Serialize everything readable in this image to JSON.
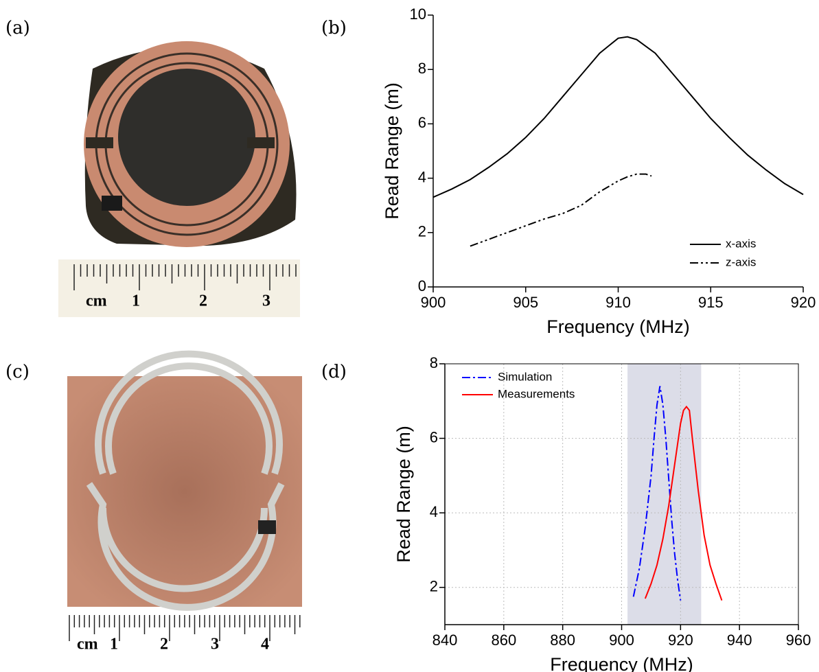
{
  "photos": [
    {
      "label": "(a)",
      "ruler": [
        "cm",
        "1",
        "2",
        "3"
      ]
    },
    {
      "label": "(c)",
      "ruler": [
        "cm",
        "1",
        "2",
        "3",
        "4"
      ]
    }
  ],
  "chart_data": [
    {
      "type": "line",
      "label": "(b)",
      "xlabel": "Frequency (MHz)",
      "ylabel": "Read Range (m)",
      "xlim": [
        900,
        920
      ],
      "xticks": [
        900,
        905,
        910,
        915,
        920
      ],
      "ylim": [
        0,
        10
      ],
      "yticks": [
        0,
        2,
        4,
        6,
        8,
        10
      ],
      "grid": false,
      "legend": "lower right",
      "series": [
        {
          "name": "x-axis",
          "color": "#000000",
          "dash": "solid",
          "x": [
            900,
            901,
            902,
            903,
            904,
            905,
            906,
            907,
            908,
            909,
            910,
            910.5,
            911,
            912,
            913,
            914,
            915,
            916,
            917,
            918,
            919,
            920
          ],
          "values": [
            3.3,
            3.6,
            3.95,
            4.4,
            4.9,
            5.5,
            6.2,
            7.0,
            7.8,
            8.6,
            9.15,
            9.2,
            9.1,
            8.6,
            7.8,
            7.0,
            6.2,
            5.5,
            4.85,
            4.3,
            3.8,
            3.4
          ]
        },
        {
          "name": "z-axis",
          "color": "#000000",
          "dash": "dashdotdot",
          "x": [
            902,
            903,
            904,
            905,
            906,
            907,
            908,
            909,
            910,
            910.5,
            911,
            911.5,
            911.8
          ],
          "values": [
            1.5,
            1.75,
            2.0,
            2.25,
            2.5,
            2.7,
            3.0,
            3.5,
            3.9,
            4.05,
            4.15,
            4.15,
            4.08
          ]
        }
      ]
    },
    {
      "type": "line",
      "label": "(d)",
      "xlabel": "Frequency (MHz)",
      "ylabel": "Read Range (m)",
      "xlim": [
        840,
        960
      ],
      "xticks": [
        840,
        860,
        880,
        900,
        920,
        940,
        960
      ],
      "ylim": [
        1,
        8
      ],
      "yticks": [
        2,
        4,
        6,
        8
      ],
      "grid": true,
      "legend": "upper left",
      "shade": [
        902,
        927
      ],
      "shade_color": "#dcdde8",
      "series": [
        {
          "name": "Simulation",
          "color": "#0000ff",
          "dash": "dashdot",
          "x": [
            904,
            906,
            908,
            910,
            911,
            912,
            913,
            914,
            915,
            916,
            917,
            918,
            919,
            920
          ],
          "values": [
            1.75,
            2.5,
            3.6,
            5.0,
            6.0,
            6.9,
            7.4,
            6.9,
            6.0,
            4.9,
            3.8,
            2.9,
            2.2,
            1.65
          ]
        },
        {
          "name": "Measurements",
          "color": "#ff0000",
          "dash": "solid",
          "x": [
            908,
            910,
            912,
            914,
            916,
            918,
            920,
            921,
            922,
            923,
            924,
            926,
            928,
            930,
            932,
            934
          ],
          "values": [
            1.7,
            2.1,
            2.6,
            3.3,
            4.2,
            5.3,
            6.4,
            6.75,
            6.85,
            6.75,
            6.0,
            4.6,
            3.4,
            2.6,
            2.1,
            1.65
          ]
        }
      ]
    }
  ]
}
